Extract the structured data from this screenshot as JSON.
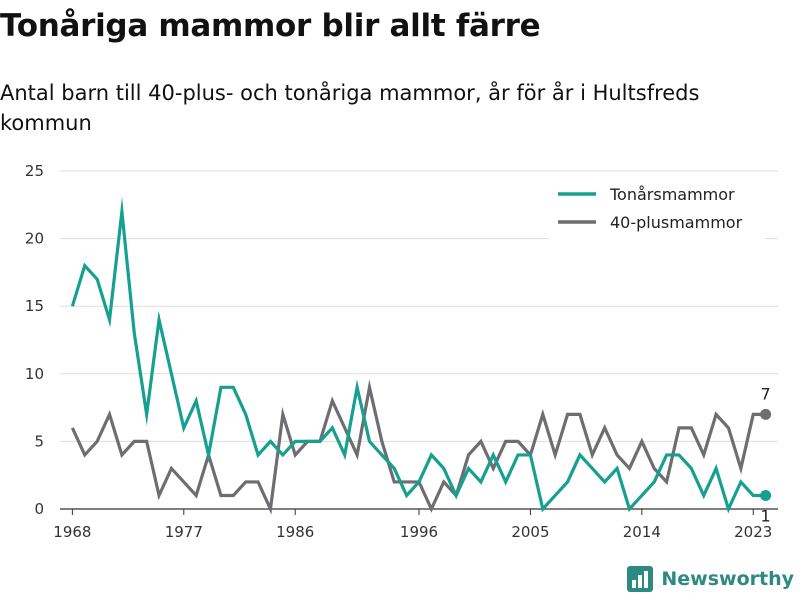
{
  "chart_data": {
    "type": "line",
    "title": "Tonåriga mammor blir allt färre",
    "subtitle": "Antal barn till 40-plus- och tonåriga mammor, år för år i Hultsfreds kommun",
    "x": [
      1968,
      1969,
      1970,
      1971,
      1972,
      1973,
      1974,
      1975,
      1976,
      1977,
      1978,
      1979,
      1980,
      1981,
      1982,
      1983,
      1984,
      1985,
      1986,
      1987,
      1988,
      1989,
      1990,
      1991,
      1992,
      1993,
      1994,
      1995,
      1996,
      1997,
      1998,
      1999,
      2000,
      2001,
      2002,
      2003,
      2004,
      2005,
      2006,
      2007,
      2008,
      2009,
      2010,
      2011,
      2012,
      2013,
      2014,
      2015,
      2016,
      2017,
      2018,
      2019,
      2020,
      2021,
      2022,
      2023,
      2024
    ],
    "series": [
      {
        "name": "Tonårsmammor",
        "color": "#16a090",
        "values": [
          15,
          18,
          17,
          14,
          22,
          13,
          7,
          14,
          10,
          6,
          8,
          4,
          9,
          9,
          7,
          4,
          5,
          4,
          5,
          5,
          5,
          6,
          4,
          9,
          5,
          4,
          3,
          1,
          2,
          4,
          3,
          1,
          3,
          2,
          4,
          2,
          4,
          4,
          0,
          1,
          2,
          4,
          3,
          2,
          3,
          0,
          1,
          2,
          4,
          4,
          3,
          1,
          3,
          0,
          2,
          1,
          1
        ],
        "end_label": "1"
      },
      {
        "name": "40-plusmammor",
        "color": "#6e6e72",
        "values": [
          6,
          4,
          5,
          7,
          4,
          5,
          5,
          1,
          3,
          2,
          1,
          4,
          1,
          1,
          2,
          2,
          0,
          7,
          4,
          5,
          5,
          8,
          6,
          4,
          9,
          5,
          2,
          2,
          2,
          0,
          2,
          1,
          4,
          5,
          3,
          5,
          5,
          4,
          7,
          4,
          7,
          7,
          4,
          6,
          4,
          3,
          5,
          3,
          2,
          6,
          6,
          4,
          7,
          6,
          3,
          7,
          7
        ],
        "end_label": "7"
      }
    ],
    "x_ticks": [
      1968,
      1977,
      1986,
      1996,
      2005,
      2014,
      2023
    ],
    "y_ticks": [
      0,
      5,
      10,
      15,
      20,
      25
    ],
    "xlim": [
      1967,
      2025
    ],
    "ylim": [
      0,
      25
    ],
    "grid": "horizontal",
    "legend_position": "top-right"
  },
  "brand": {
    "name": "Newsworthy",
    "color": "#2d8a82",
    "icon": "bar-chart-icon"
  }
}
